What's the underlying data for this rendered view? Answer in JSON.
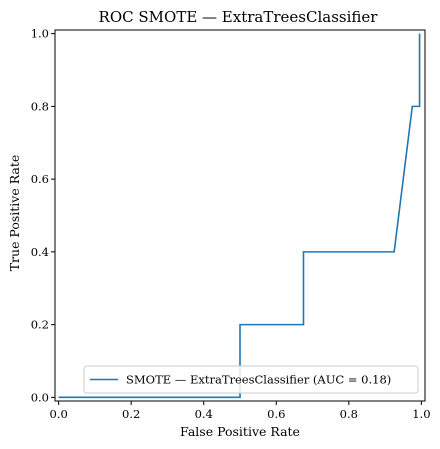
{
  "chart_data": {
    "type": "line",
    "title": "ROC SMOTE — ExtraTreesClassifier",
    "xlabel": "False Positive Rate",
    "ylabel": "True Positive Rate",
    "xlim": [
      -0.01,
      1.01
    ],
    "ylim": [
      -0.01,
      1.01
    ],
    "xticks": [
      0.0,
      0.2,
      0.4,
      0.6,
      0.8,
      1.0
    ],
    "yticks": [
      0.0,
      0.2,
      0.4,
      0.6,
      0.8,
      1.0
    ],
    "xtick_labels": [
      "0.0",
      "0.2",
      "0.4",
      "0.6",
      "0.8",
      "1.0"
    ],
    "ytick_labels": [
      "0.0",
      "0.2",
      "0.4",
      "0.6",
      "0.8",
      "1.0"
    ],
    "grid": false,
    "legend_position": "lower-right",
    "series": [
      {
        "name": "SMOTE — ExtraTreesClassifier (AUC = 0.18)",
        "color": "#1f77b4",
        "x": [
          0.0,
          0.5,
          0.5,
          0.675,
          0.675,
          0.925,
          0.975,
          0.995,
          0.995
        ],
        "y": [
          0.0,
          0.0,
          0.2,
          0.2,
          0.4,
          0.4,
          0.8,
          0.8,
          1.0
        ]
      }
    ]
  }
}
